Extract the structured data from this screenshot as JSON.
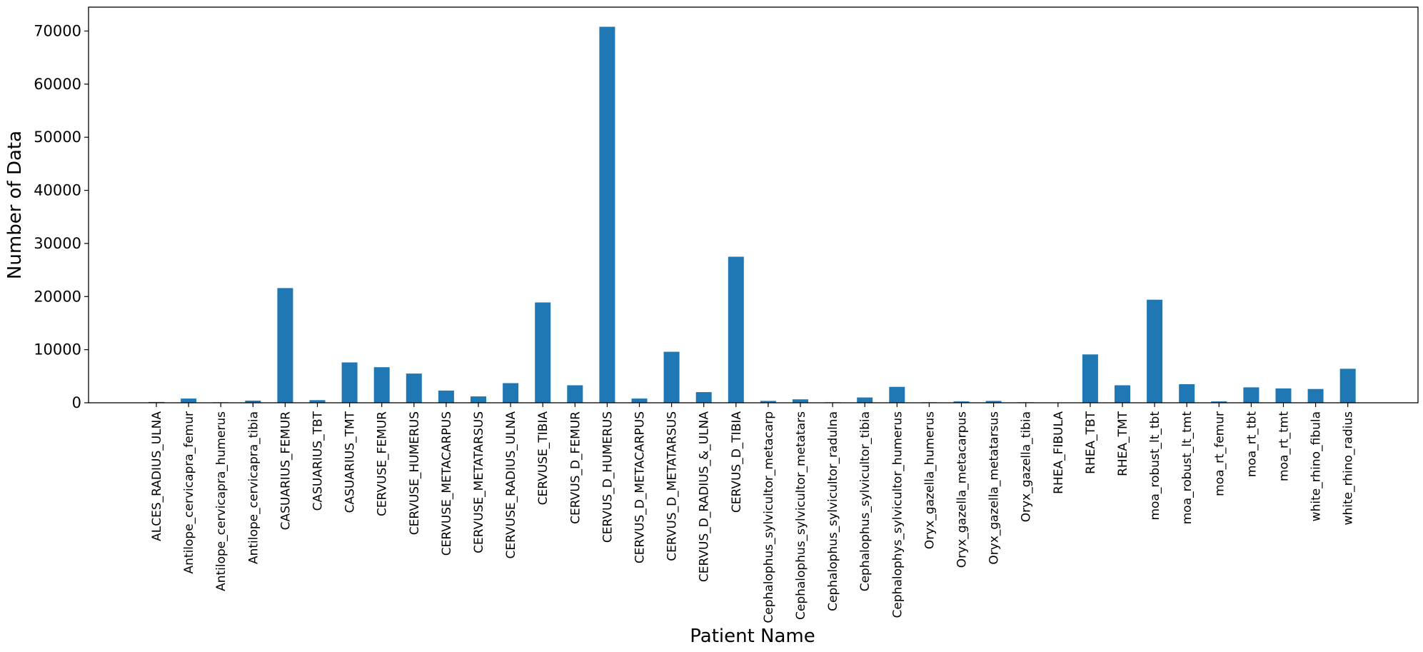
{
  "chart_data": {
    "type": "bar",
    "xlabel": "Patient Name",
    "ylabel": "Number of Data",
    "ylim": [
      0,
      74500
    ],
    "yticks": [
      0,
      10000,
      20000,
      30000,
      40000,
      50000,
      60000,
      70000
    ],
    "grid": false,
    "bar_color": "#1f77b4",
    "categories": [
      "ALCES_RADIUS_ULNA",
      "Antilope_cervicapra_femur",
      "Antilope_cervicapra_humerus",
      "Antilope_cervicapra_tibia",
      "CASUARIUS_FEMUR",
      "CASUARIUS_TBT",
      "CASUARIUS_TMT",
      "CERVUSE_FEMUR",
      "CERVUSE_HUMERUS",
      "CERVUSE_METACARPUS",
      "CERVUSE_METATARSUS",
      "CERVUSE_RADIUS_ULNA",
      "CERVUSE_TIBIA",
      "CERVUS_D_FEMUR",
      "CERVUS_D_HUMERUS",
      "CERVUS_D_METACARPUS",
      "CERVUS_D_METATARSUS",
      "CERVUS_D_RADIUS_&_ULNA",
      "CERVUS_D_TIBIA",
      "Cephalophus_sylvicultor_metacarp",
      "Cephalophus_sylvicultor_metatars",
      "Cephalophus_sylvicultor_radulna",
      "Cephalophus_sylvicultor_tibia",
      "Cephalophys_sylvicultor_humerus",
      "Oryx_gazella_humerus",
      "Oryx_gazella_metacarpus",
      "Oryx_gazella_metatarsus",
      "Oryx_gazella_tibia",
      "RHEA_FIBULA",
      "RHEA_TBT",
      "RHEA_TMT",
      "moa_robust_lt_tbt",
      "moa_robust_lt_tmt",
      "moa_rt_femur",
      "moa_rt_tbt",
      "moa_rt_tmt",
      "white_rhino_fibula",
      "white_rhino_radius"
    ],
    "values": [
      150,
      800,
      100,
      400,
      21600,
      500,
      7600,
      6700,
      5500,
      2300,
      1200,
      3700,
      18900,
      3300,
      70800,
      800,
      9600,
      2000,
      27500,
      350,
      650,
      100,
      1000,
      3000,
      100,
      250,
      350,
      100,
      0,
      9100,
      3300,
      19400,
      3500,
      250,
      2900,
      2700,
      2600,
      6400
    ]
  }
}
